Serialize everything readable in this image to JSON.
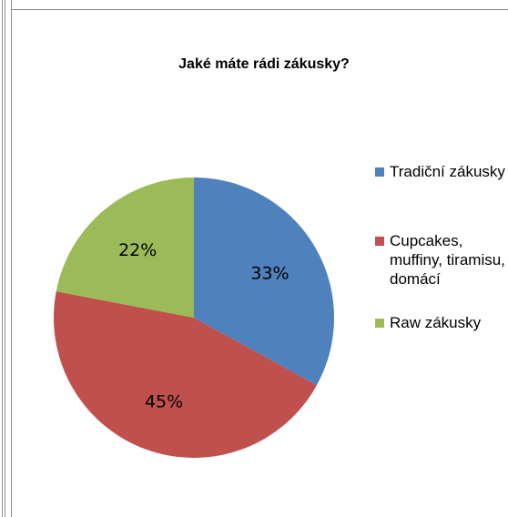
{
  "chart_data": {
    "type": "pie",
    "title": "Jaké máte rádi zákusky?",
    "slices": [
      {
        "label": "Tradiční zákusky",
        "value": 33,
        "value_label": "33%",
        "color": "#4f81bd"
      },
      {
        "label": "Cupcakes, muffiny, tiramisu, domácí",
        "value": 45,
        "value_label": "45%",
        "color": "#c0504d"
      },
      {
        "label": "Raw zákusky",
        "value": 22,
        "value_label": "22%",
        "color": "#9bbb59"
      }
    ],
    "legend_position": "right"
  }
}
